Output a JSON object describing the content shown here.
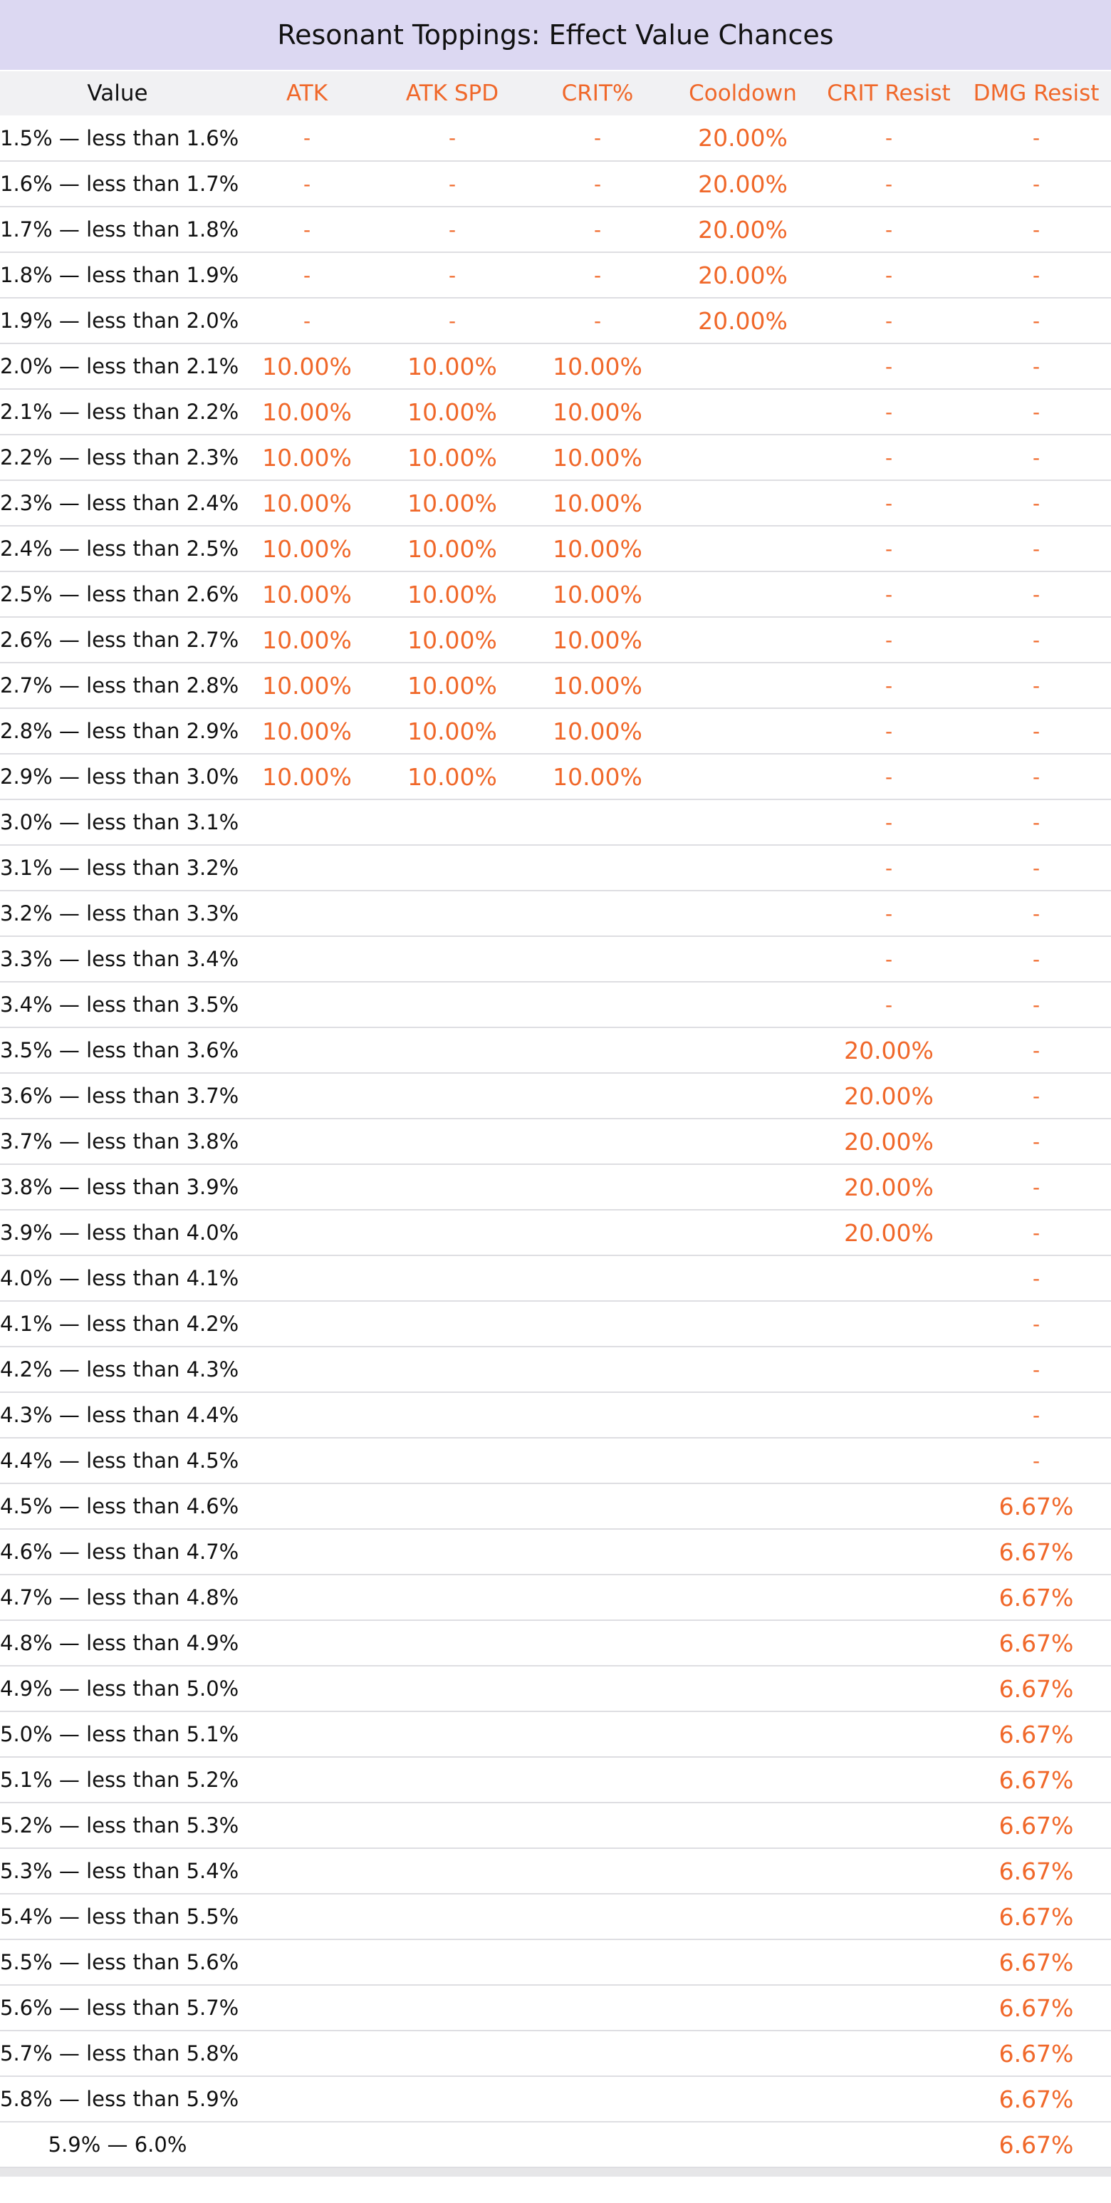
{
  "title": "Resonant Toppings: Effect Value Chances",
  "columns": [
    "Value",
    "ATK",
    "ATK SPD",
    "CRIT%",
    "Cooldown",
    "CRIT Resist",
    "DMG Resist"
  ],
  "rows": [
    [
      "1.5% — less than 1.6%",
      "-",
      "-",
      "-",
      "20.00%",
      "-",
      "-"
    ],
    [
      "1.6% — less than 1.7%",
      "-",
      "-",
      "-",
      "20.00%",
      "-",
      "-"
    ],
    [
      "1.7% — less than 1.8%",
      "-",
      "-",
      "-",
      "20.00%",
      "-",
      "-"
    ],
    [
      "1.8% — less than 1.9%",
      "-",
      "-",
      "-",
      "20.00%",
      "-",
      "-"
    ],
    [
      "1.9% — less than 2.0%",
      "-",
      "-",
      "-",
      "20.00%",
      "-",
      "-"
    ],
    [
      "2.0% — less than 2.1%",
      "10.00%",
      "10.00%",
      "10.00%",
      "",
      "-",
      "-"
    ],
    [
      "2.1% — less than 2.2%",
      "10.00%",
      "10.00%",
      "10.00%",
      "",
      "-",
      "-"
    ],
    [
      "2.2% — less than 2.3%",
      "10.00%",
      "10.00%",
      "10.00%",
      "",
      "-",
      "-"
    ],
    [
      "2.3% — less than 2.4%",
      "10.00%",
      "10.00%",
      "10.00%",
      "",
      "-",
      "-"
    ],
    [
      "2.4% — less than 2.5%",
      "10.00%",
      "10.00%",
      "10.00%",
      "",
      "-",
      "-"
    ],
    [
      "2.5% — less than 2.6%",
      "10.00%",
      "10.00%",
      "10.00%",
      "",
      "-",
      "-"
    ],
    [
      "2.6% — less than 2.7%",
      "10.00%",
      "10.00%",
      "10.00%",
      "",
      "-",
      "-"
    ],
    [
      "2.7% — less than 2.8%",
      "10.00%",
      "10.00%",
      "10.00%",
      "",
      "-",
      "-"
    ],
    [
      "2.8% — less than 2.9%",
      "10.00%",
      "10.00%",
      "10.00%",
      "",
      "-",
      "-"
    ],
    [
      "2.9% — less than 3.0%",
      "10.00%",
      "10.00%",
      "10.00%",
      "",
      "-",
      "-"
    ],
    [
      "3.0% — less than 3.1%",
      "",
      "",
      "",
      "",
      "-",
      "-"
    ],
    [
      "3.1% — less than 3.2%",
      "",
      "",
      "",
      "",
      "-",
      "-"
    ],
    [
      "3.2% — less than 3.3%",
      "",
      "",
      "",
      "",
      "-",
      "-"
    ],
    [
      "3.3% — less than 3.4%",
      "",
      "",
      "",
      "",
      "-",
      "-"
    ],
    [
      "3.4% — less than 3.5%",
      "",
      "",
      "",
      "",
      "-",
      "-"
    ],
    [
      "3.5% — less than 3.6%",
      "",
      "",
      "",
      "",
      "20.00%",
      "-"
    ],
    [
      "3.6% — less than 3.7%",
      "",
      "",
      "",
      "",
      "20.00%",
      "-"
    ],
    [
      "3.7% — less than 3.8%",
      "",
      "",
      "",
      "",
      "20.00%",
      "-"
    ],
    [
      "3.8% — less than 3.9%",
      "",
      "",
      "",
      "",
      "20.00%",
      "-"
    ],
    [
      "3.9% — less than 4.0%",
      "",
      "",
      "",
      "",
      "20.00%",
      "-"
    ],
    [
      "4.0% — less than 4.1%",
      "",
      "",
      "",
      "",
      "",
      "-"
    ],
    [
      "4.1% — less than 4.2%",
      "",
      "",
      "",
      "",
      "",
      "-"
    ],
    [
      "4.2% — less than 4.3%",
      "",
      "",
      "",
      "",
      "",
      "-"
    ],
    [
      "4.3% — less than 4.4%",
      "",
      "",
      "",
      "",
      "",
      "-"
    ],
    [
      "4.4% — less than 4.5%",
      "",
      "",
      "",
      "",
      "",
      "-"
    ],
    [
      "4.5% — less than 4.6%",
      "",
      "",
      "",
      "",
      "",
      "6.67%"
    ],
    [
      "4.6% — less than 4.7%",
      "",
      "",
      "",
      "",
      "",
      "6.67%"
    ],
    [
      "4.7% — less than 4.8%",
      "",
      "",
      "",
      "",
      "",
      "6.67%"
    ],
    [
      "4.8% — less than 4.9%",
      "",
      "",
      "",
      "",
      "",
      "6.67%"
    ],
    [
      "4.9% — less than 5.0%",
      "",
      "",
      "",
      "",
      "",
      "6.67%"
    ],
    [
      "5.0% — less than 5.1%",
      "",
      "",
      "",
      "",
      "",
      "6.67%"
    ],
    [
      "5.1% — less than 5.2%",
      "",
      "",
      "",
      "",
      "",
      "6.67%"
    ],
    [
      "5.2% — less than 5.3%",
      "",
      "",
      "",
      "",
      "",
      "6.67%"
    ],
    [
      "5.3% — less than 5.4%",
      "",
      "",
      "",
      "",
      "",
      "6.67%"
    ],
    [
      "5.4% — less than 5.5%",
      "",
      "",
      "",
      "",
      "",
      "6.67%"
    ],
    [
      "5.5% — less than 5.6%",
      "",
      "",
      "",
      "",
      "",
      "6.67%"
    ],
    [
      "5.6% — less than 5.7%",
      "",
      "",
      "",
      "",
      "",
      "6.67%"
    ],
    [
      "5.7% — less than 5.8%",
      "",
      "",
      "",
      "",
      "",
      "6.67%"
    ],
    [
      "5.8% — less than 5.9%",
      "",
      "",
      "",
      "",
      "",
      "6.67%"
    ],
    [
      "5.9% —  6.0%",
      "",
      "",
      "",
      "",
      "",
      "6.67%"
    ]
  ],
  "colors": {
    "header_band": "#dcd8f2",
    "accent": "#f0682a",
    "row_divider": "#dedee2"
  }
}
